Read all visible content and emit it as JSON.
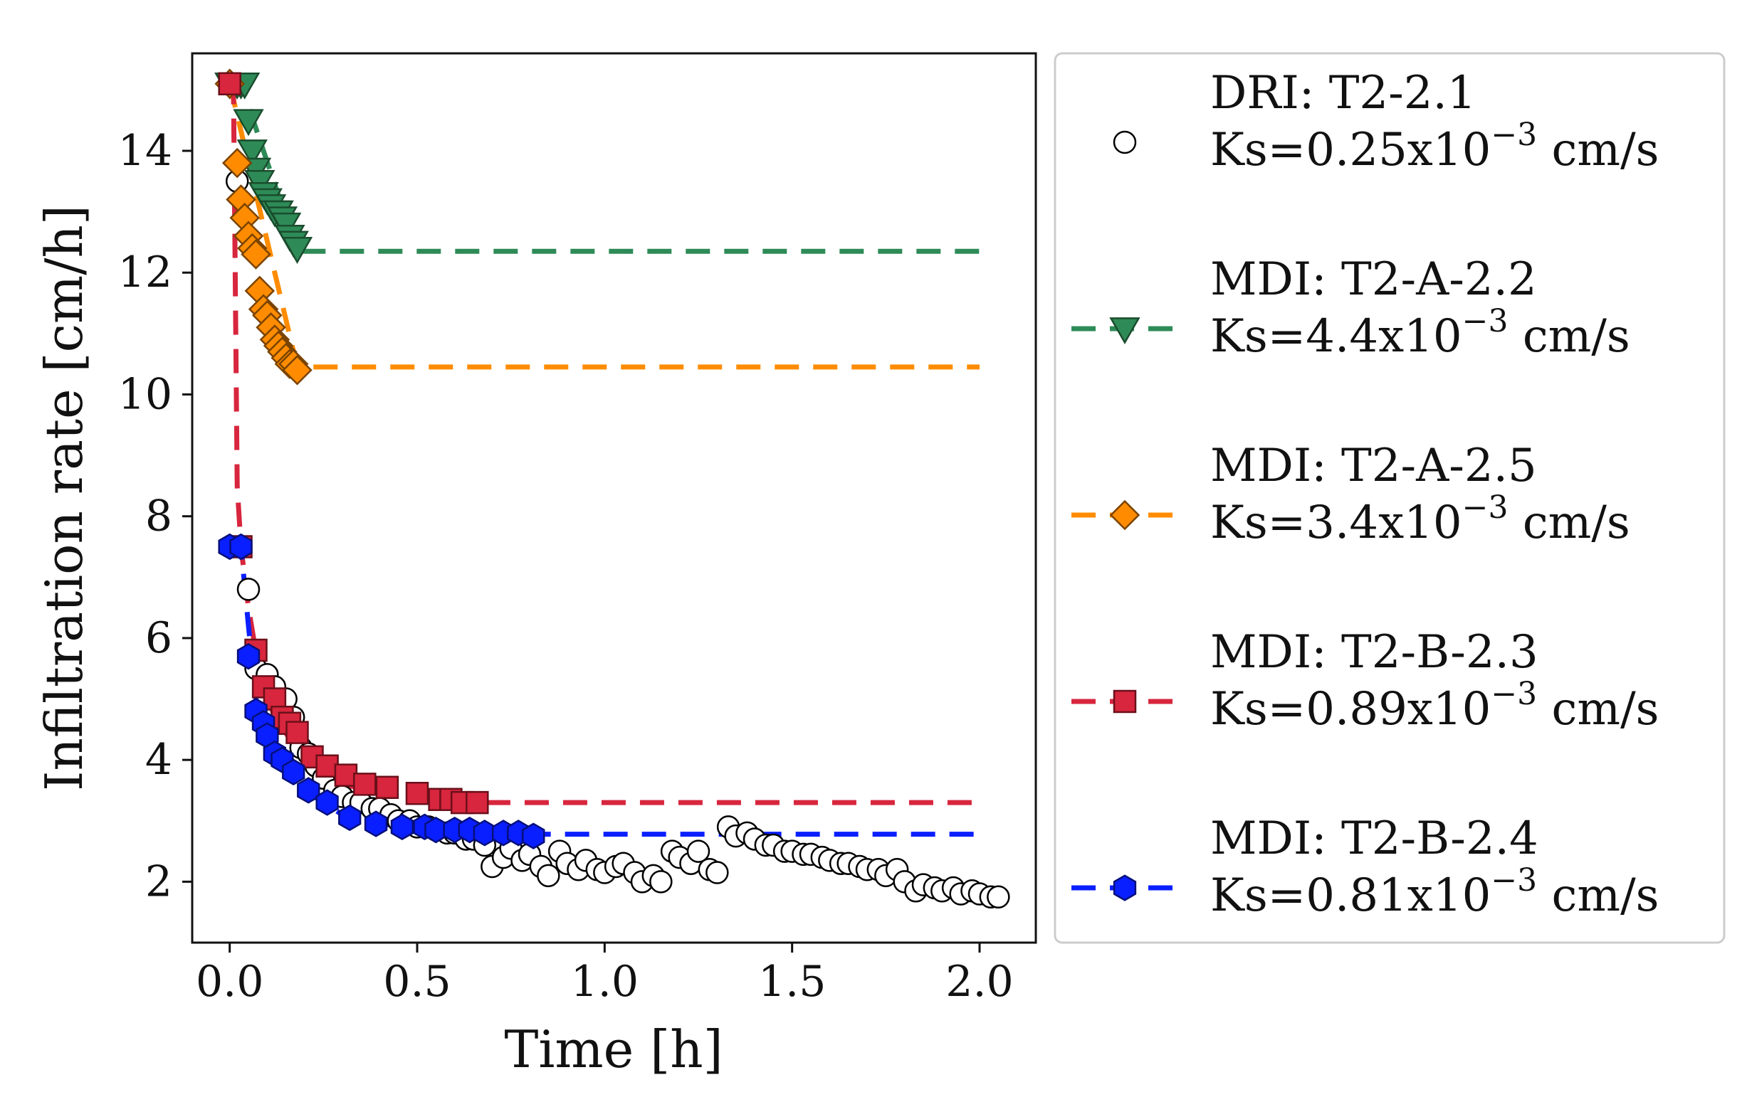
{
  "chart_data": {
    "type": "scatter",
    "xlabel": "Time [h]",
    "ylabel": "Infiltration rate [cm/h]",
    "xlim": [
      -0.1,
      2.15
    ],
    "ylim": [
      1.0,
      15.6
    ],
    "xticks": [
      0.0,
      0.5,
      1.0,
      1.5,
      2.0
    ],
    "xtick_labels": [
      "0.0",
      "0.5",
      "1.0",
      "1.5",
      "2.0"
    ],
    "yticks": [
      2,
      4,
      6,
      8,
      10,
      12,
      14
    ],
    "ytick_labels": [
      "2",
      "4",
      "6",
      "8",
      "10",
      "12",
      "14"
    ],
    "grid": false,
    "legend_position": "outside-right",
    "series": [
      {
        "name": "DRI: T2-2.1",
        "ks_prefix": "Ks=0.25x10",
        "ks_exp": "−3",
        "ks_suffix": " cm/s",
        "color": "#ffffff",
        "edge": "#000000",
        "marker": "circle",
        "fit_line": null,
        "x": [
          0.0,
          0.02,
          0.05,
          0.07,
          0.1,
          0.12,
          0.15,
          0.17,
          0.19,
          0.21,
          0.23,
          0.25,
          0.28,
          0.3,
          0.33,
          0.35,
          0.38,
          0.4,
          0.43,
          0.45,
          0.48,
          0.5,
          0.53,
          0.55,
          0.58,
          0.6,
          0.63,
          0.65,
          0.68,
          0.7,
          0.73,
          0.75,
          0.78,
          0.8,
          0.83,
          0.85,
          0.88,
          0.9,
          0.93,
          0.95,
          0.98,
          1.0,
          1.03,
          1.05,
          1.08,
          1.1,
          1.13,
          1.15,
          1.18,
          1.2,
          1.23,
          1.25,
          1.28,
          1.3,
          1.33,
          1.35,
          1.38,
          1.4,
          1.43,
          1.45,
          1.48,
          1.5,
          1.53,
          1.55,
          1.58,
          1.6,
          1.63,
          1.65,
          1.68,
          1.7,
          1.73,
          1.75,
          1.78,
          1.8,
          1.83,
          1.85,
          1.88,
          1.9,
          1.93,
          1.95,
          1.98,
          2.0,
          2.03,
          2.05
        ],
        "y": [
          15.1,
          13.5,
          6.8,
          5.5,
          5.4,
          5.2,
          5.0,
          4.7,
          4.2,
          4.1,
          3.9,
          3.7,
          3.5,
          3.4,
          3.3,
          3.3,
          3.2,
          3.2,
          3.1,
          3.0,
          3.0,
          2.9,
          2.9,
          2.85,
          2.8,
          2.8,
          2.7,
          2.7,
          2.6,
          2.25,
          2.4,
          2.55,
          2.35,
          2.45,
          2.25,
          2.1,
          2.5,
          2.3,
          2.2,
          2.35,
          2.2,
          2.15,
          2.25,
          2.3,
          2.15,
          2.0,
          2.1,
          2.0,
          2.5,
          2.4,
          2.3,
          2.5,
          2.2,
          2.15,
          2.9,
          2.75,
          2.8,
          2.7,
          2.6,
          2.6,
          2.5,
          2.5,
          2.45,
          2.45,
          2.4,
          2.35,
          2.3,
          2.3,
          2.25,
          2.2,
          2.2,
          2.1,
          2.2,
          2.0,
          1.85,
          1.95,
          1.9,
          1.85,
          1.9,
          1.8,
          1.85,
          1.8,
          1.75,
          1.75
        ]
      },
      {
        "name": "MDI: T2-A-2.2",
        "ks_prefix": "Ks=4.4x10",
        "ks_exp": "−3",
        "ks_suffix": " cm/s",
        "color": "#2e8b57",
        "edge": "#1a4d2e",
        "marker": "triangle-down",
        "fit_line": {
          "x": [
            0.0,
            0.03,
            0.18,
            2.0
          ],
          "y": [
            15.1,
            15.1,
            12.35,
            12.35
          ]
        },
        "x": [
          0.0,
          0.02,
          0.03,
          0.04,
          0.05,
          0.06,
          0.07,
          0.08,
          0.09,
          0.1,
          0.11,
          0.12,
          0.13,
          0.14,
          0.15,
          0.16,
          0.17,
          0.18
        ],
        "y": [
          15.1,
          15.1,
          15.1,
          15.1,
          14.5,
          14.0,
          13.7,
          13.5,
          13.3,
          13.2,
          13.1,
          13.0,
          13.0,
          12.9,
          12.8,
          12.6,
          12.5,
          12.4
        ]
      },
      {
        "name": "MDI: T2-A-2.5",
        "ks_prefix": "Ks=3.4x10",
        "ks_exp": "−3",
        "ks_suffix": " cm/s",
        "color": "#ff8c00",
        "edge": "#7a4300",
        "marker": "diamond",
        "fit_line": {
          "x": [
            0.0,
            0.18,
            2.0
          ],
          "y": [
            15.1,
            10.45,
            10.45
          ]
        },
        "x": [
          0.0,
          0.02,
          0.03,
          0.04,
          0.05,
          0.06,
          0.07,
          0.08,
          0.09,
          0.1,
          0.11,
          0.12,
          0.13,
          0.14,
          0.15,
          0.16,
          0.17,
          0.18
        ],
        "y": [
          15.1,
          13.8,
          13.2,
          12.9,
          12.6,
          12.4,
          12.3,
          11.7,
          11.4,
          11.3,
          11.1,
          10.9,
          10.8,
          10.7,
          10.6,
          10.5,
          10.5,
          10.4
        ]
      },
      {
        "name": "MDI: T2-B-2.3",
        "ks_prefix": "Ks=0.89x10",
        "ks_exp": "−3",
        "ks_suffix": " cm/s",
        "color": "#d7263d",
        "edge": "#6b0f1a",
        "marker": "square",
        "fit_line": {
          "x": [
            0.0,
            0.01,
            0.02,
            0.03,
            0.05,
            0.08,
            0.12,
            0.2,
            0.3,
            0.45,
            0.6,
            0.65,
            2.0
          ],
          "y": [
            15.1,
            15.1,
            8.5,
            7.5,
            6.5,
            5.4,
            4.7,
            4.0,
            3.6,
            3.4,
            3.3,
            3.3,
            3.3
          ]
        },
        "x": [
          0.0,
          0.03,
          0.07,
          0.09,
          0.12,
          0.14,
          0.16,
          0.18,
          0.22,
          0.26,
          0.31,
          0.36,
          0.42,
          0.5,
          0.56,
          0.59,
          0.62,
          0.66
        ],
        "y": [
          15.1,
          7.5,
          5.8,
          5.2,
          5.0,
          4.7,
          4.6,
          4.45,
          4.05,
          3.9,
          3.75,
          3.6,
          3.55,
          3.45,
          3.35,
          3.35,
          3.3,
          3.3
        ]
      },
      {
        "name": "MDI: T2-B-2.4",
        "ks_prefix": "Ks=0.81x10",
        "ks_exp": "−3",
        "ks_suffix": " cm/s",
        "color": "#0a1fff",
        "edge": "#050f7a",
        "marker": "hexagon",
        "fit_line": {
          "x": [
            0.0,
            0.03,
            0.05,
            0.07,
            0.1,
            0.15,
            0.2,
            0.3,
            0.45,
            0.6,
            0.75,
            0.8,
            2.0
          ],
          "y": [
            7.5,
            7.5,
            6.2,
            5.0,
            4.4,
            3.9,
            3.5,
            3.1,
            2.9,
            2.85,
            2.8,
            2.78,
            2.78
          ]
        },
        "x": [
          0.0,
          0.03,
          0.05,
          0.07,
          0.09,
          0.1,
          0.12,
          0.14,
          0.17,
          0.21,
          0.26,
          0.32,
          0.39,
          0.46,
          0.52,
          0.55,
          0.6,
          0.64,
          0.68,
          0.73,
          0.77,
          0.81
        ],
        "y": [
          7.5,
          7.5,
          5.7,
          4.8,
          4.6,
          4.4,
          4.1,
          4.0,
          3.8,
          3.5,
          3.3,
          3.05,
          2.95,
          2.9,
          2.9,
          2.85,
          2.85,
          2.85,
          2.8,
          2.8,
          2.8,
          2.75
        ]
      }
    ]
  }
}
